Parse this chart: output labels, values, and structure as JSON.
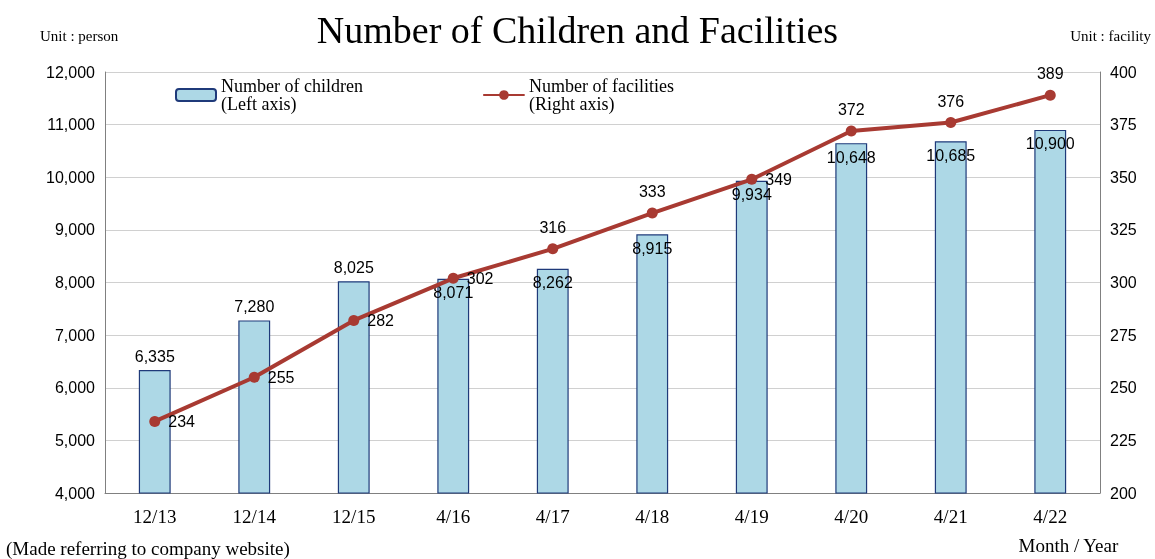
{
  "chart_data": {
    "type": "bar",
    "title": "Number of Children and Facilities",
    "categories": [
      "12/13",
      "12/14",
      "12/15",
      "4/16",
      "4/17",
      "4/18",
      "4/19",
      "4/20",
      "4/21",
      "4/22"
    ],
    "series": [
      {
        "name": "Number of children\n(Left axis)",
        "color": "#add8e6",
        "values": [
          6335,
          7280,
          8025,
          8071,
          8262,
          8915,
          9934,
          10648,
          10685,
          10900
        ],
        "value_labels": [
          "6,335",
          "7,280",
          "8,025",
          "8,071",
          "8,262",
          "8,915",
          "9,934",
          "10,648",
          "10,685",
          "10,900"
        ]
      },
      {
        "name": "Number of facilities\n(Right axis)",
        "type": "line",
        "axis": "y2",
        "color": "#a83a32",
        "values": [
          234,
          255,
          282,
          302,
          316,
          333,
          349,
          372,
          376,
          389
        ],
        "value_labels": [
          "234",
          "255",
          "282",
          "302",
          "316",
          "333",
          "349",
          "372",
          "376",
          "389"
        ]
      }
    ],
    "ylim": [
      4000,
      12000
    ],
    "yticks": [
      {
        "value": 4000,
        "label": "4,000"
      },
      {
        "value": 5000,
        "label": "5,000"
      },
      {
        "value": 6000,
        "label": "6,000"
      },
      {
        "value": 7000,
        "label": "7,000"
      },
      {
        "value": 8000,
        "label": "8,000"
      },
      {
        "value": 9000,
        "label": "9,000"
      },
      {
        "value": 10000,
        "label": "10,000"
      },
      {
        "value": 11000,
        "label": "11,000"
      },
      {
        "value": 12000,
        "label": "12,000"
      }
    ],
    "y2lim": [
      200,
      400
    ],
    "y2ticks": [
      200,
      225,
      250,
      275,
      300,
      325,
      350,
      375,
      400
    ],
    "ylabel": "Unit : person",
    "y2label": "Unit : facility",
    "xlabel": "Month / Year",
    "annotations": [
      "(Made referring to company website)"
    ],
    "grid": "y",
    "legend": "top left",
    "marker": "circle",
    "line_style": "solid"
  }
}
